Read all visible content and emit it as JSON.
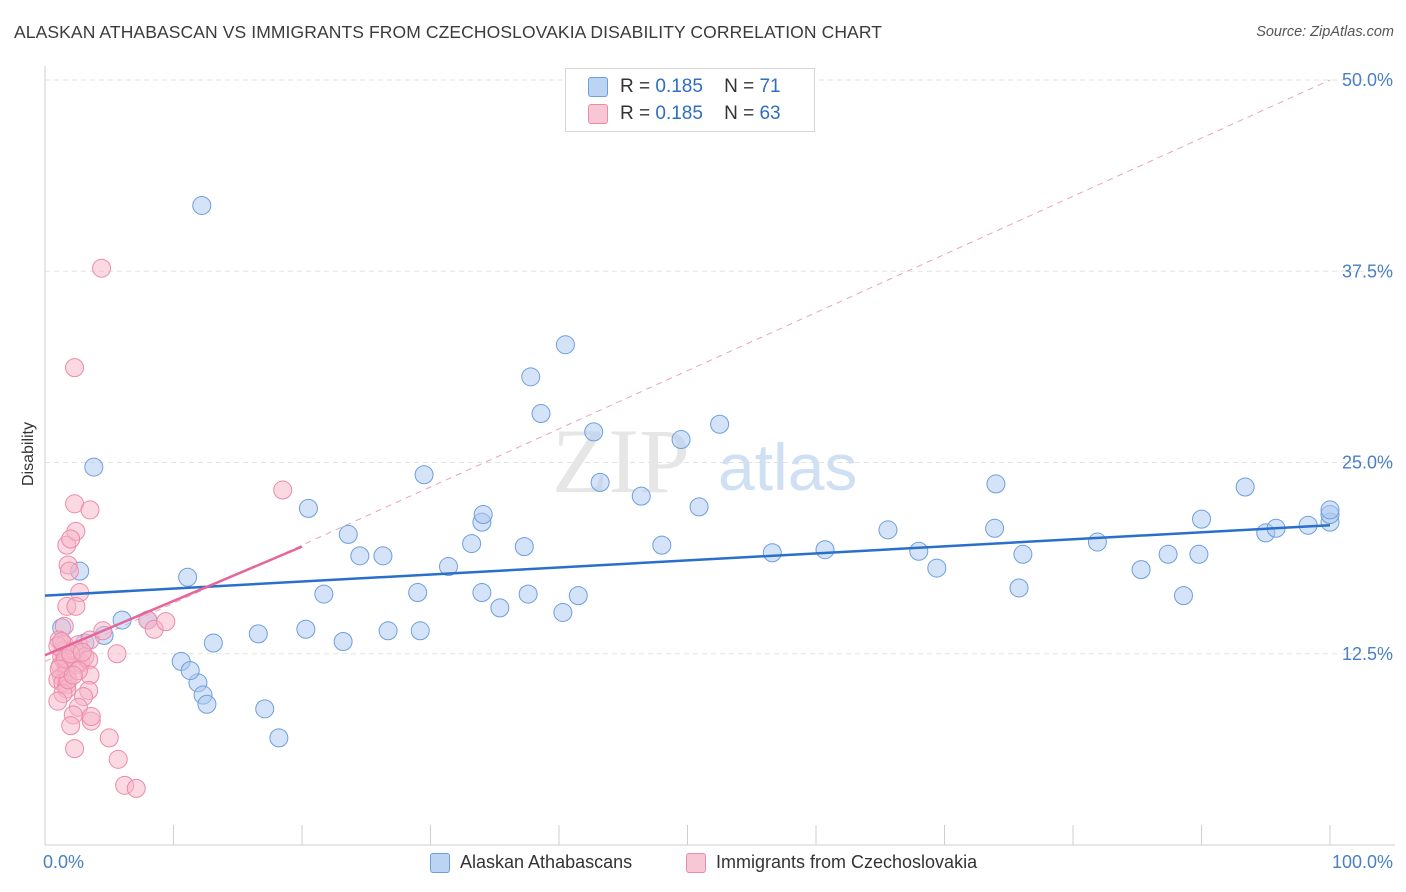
{
  "title": "ALASKAN ATHABASCAN VS IMMIGRANTS FROM CZECHOSLOVAKIA DISABILITY CORRELATION CHART",
  "source": "Source: ZipAtlas.com",
  "watermark": {
    "zip": "ZIP",
    "atlas": "atlas"
  },
  "legend_top": [
    {
      "r_label": "R =",
      "r_value": "0.185",
      "n_label": "N =",
      "n_value": "71"
    },
    {
      "r_label": "R =",
      "r_value": "0.185",
      "n_label": "N =",
      "n_value": "63"
    }
  ],
  "legend_bottom": [
    "Alaskan Athabascans",
    "Immigrants from Czechoslovakia"
  ],
  "colors": {
    "blue_fill": "#a9c8f0",
    "blue_stroke": "#6d9fdc",
    "blue_line": "#2a6fcb",
    "pink_fill": "#f6b3c7",
    "pink_stroke": "#ec8aa9",
    "pink_line": "#e4669a",
    "grid": "#e3e3e3",
    "tick_text": "#4a7fc4"
  },
  "chart_data": {
    "type": "scatter",
    "title": "ALASKAN ATHABASCAN VS IMMIGRANTS FROM CZECHOSLOVAKIA DISABILITY CORRELATION CHART",
    "xlabel": "",
    "ylabel": "Disability",
    "xlim": [
      0,
      100
    ],
    "ylim": [
      0,
      50
    ],
    "x_tick_labels": [
      "0.0%",
      "100.0%"
    ],
    "y_ticks": [
      12.5,
      25.0,
      37.5,
      50.0
    ],
    "y_tick_labels": [
      "12.5%",
      "25.0%",
      "37.5%",
      "50.0%"
    ],
    "grid": true,
    "legend_position": "top-center",
    "series": [
      {
        "name": "Alaskan Athabascans",
        "color": "#a9c8f0",
        "trend": {
          "x": [
            0,
            100
          ],
          "y": [
            16.3,
            20.9
          ]
        },
        "points": [
          [
            12.2,
            41.8
          ],
          [
            3.8,
            24.7
          ],
          [
            2.7,
            17.9
          ],
          [
            1.3,
            14.2
          ],
          [
            3.1,
            13.2
          ],
          [
            4.6,
            13.7
          ],
          [
            6.0,
            14.7
          ],
          [
            8.0,
            14.7
          ],
          [
            13.1,
            13.2
          ],
          [
            16.6,
            13.8
          ],
          [
            20.3,
            14.1
          ],
          [
            11.1,
            17.5
          ],
          [
            11.9,
            10.6
          ],
          [
            12.3,
            9.8
          ],
          [
            10.6,
            12.0
          ],
          [
            11.3,
            11.4
          ],
          [
            12.6,
            9.2
          ],
          [
            17.1,
            8.9
          ],
          [
            18.2,
            7.0
          ],
          [
            23.2,
            13.3
          ],
          [
            26.7,
            14.0
          ],
          [
            21.7,
            16.4
          ],
          [
            26.3,
            18.9
          ],
          [
            29.0,
            16.5
          ],
          [
            24.5,
            18.9
          ],
          [
            23.6,
            20.3
          ],
          [
            29.2,
            14.0
          ],
          [
            34.0,
            16.5
          ],
          [
            35.4,
            15.5
          ],
          [
            37.6,
            16.4
          ],
          [
            40.3,
            15.2
          ],
          [
            41.5,
            16.3
          ],
          [
            37.3,
            19.5
          ],
          [
            34.0,
            21.1
          ],
          [
            38.6,
            28.2
          ],
          [
            42.7,
            27.0
          ],
          [
            49.5,
            26.5
          ],
          [
            52.5,
            27.5
          ],
          [
            40.5,
            32.7
          ],
          [
            37.8,
            30.6
          ],
          [
            43.2,
            23.7
          ],
          [
            46.4,
            22.8
          ],
          [
            50.9,
            22.1
          ],
          [
            48.0,
            19.6
          ],
          [
            56.6,
            19.1
          ],
          [
            60.7,
            19.3
          ],
          [
            65.6,
            20.6
          ],
          [
            68.0,
            19.2
          ],
          [
            69.4,
            18.1
          ],
          [
            73.9,
            20.7
          ],
          [
            74.0,
            23.6
          ],
          [
            75.8,
            16.8
          ],
          [
            76.1,
            19.0
          ],
          [
            81.9,
            19.8
          ],
          [
            85.3,
            18.0
          ],
          [
            87.4,
            19.0
          ],
          [
            88.6,
            16.3
          ],
          [
            89.8,
            19.0
          ],
          [
            90.0,
            21.3
          ],
          [
            93.4,
            23.4
          ],
          [
            95.0,
            20.4
          ],
          [
            95.8,
            20.7
          ],
          [
            98.3,
            20.9
          ],
          [
            100.0,
            21.1
          ],
          [
            100.0,
            21.6
          ],
          [
            100.0,
            21.9
          ],
          [
            20.5,
            22.0
          ],
          [
            29.5,
            24.2
          ],
          [
            34.1,
            21.6
          ],
          [
            33.2,
            19.7
          ],
          [
            31.4,
            18.2
          ]
        ]
      },
      {
        "name": "Immigrants from Czechoslovakia",
        "color": "#f6b3c7",
        "trend": {
          "x": [
            0,
            20
          ],
          "y": [
            12.4,
            19.5
          ]
        },
        "points": [
          [
            4.4,
            37.7
          ],
          [
            2.3,
            31.2
          ],
          [
            1.7,
            19.6
          ],
          [
            1.8,
            18.3
          ],
          [
            2.4,
            20.5
          ],
          [
            2.3,
            22.3
          ],
          [
            3.5,
            21.9
          ],
          [
            2.0,
            20.0
          ],
          [
            1.9,
            17.9
          ],
          [
            2.7,
            16.5
          ],
          [
            1.7,
            15.6
          ],
          [
            2.4,
            15.6
          ],
          [
            1.5,
            14.3
          ],
          [
            1.5,
            13.1
          ],
          [
            1.4,
            12.7
          ],
          [
            1.3,
            12.3
          ],
          [
            1.5,
            12.0
          ],
          [
            1.2,
            11.7
          ],
          [
            1.7,
            11.6
          ],
          [
            1.7,
            11.3
          ],
          [
            1.3,
            11.0
          ],
          [
            1.0,
            10.8
          ],
          [
            1.4,
            10.6
          ],
          [
            1.7,
            10.5
          ],
          [
            1.7,
            10.2
          ],
          [
            1.4,
            9.9
          ],
          [
            1.0,
            9.4
          ],
          [
            1.1,
            13.4
          ],
          [
            1.0,
            13.0
          ],
          [
            1.3,
            13.3
          ],
          [
            2.3,
            12.7
          ],
          [
            2.6,
            13.1
          ],
          [
            2.5,
            11.8
          ],
          [
            2.8,
            11.9
          ],
          [
            3.1,
            12.3
          ],
          [
            3.5,
            13.4
          ],
          [
            3.4,
            12.1
          ],
          [
            3.5,
            11.1
          ],
          [
            3.4,
            10.1
          ],
          [
            3.0,
            9.7
          ],
          [
            2.6,
            9.0
          ],
          [
            2.2,
            8.5
          ],
          [
            2.0,
            7.8
          ],
          [
            2.3,
            6.3
          ],
          [
            3.6,
            8.1
          ],
          [
            4.5,
            14.0
          ],
          [
            5.6,
            12.5
          ],
          [
            5.0,
            7.0
          ],
          [
            5.7,
            5.6
          ],
          [
            6.2,
            3.9
          ],
          [
            7.1,
            3.7
          ],
          [
            8.0,
            14.7
          ],
          [
            8.5,
            14.1
          ],
          [
            9.4,
            14.6
          ],
          [
            18.5,
            23.2
          ],
          [
            3.6,
            8.4
          ],
          [
            1.6,
            12.2
          ],
          [
            2.0,
            12.5
          ],
          [
            2.9,
            12.6
          ],
          [
            1.8,
            10.8
          ],
          [
            2.6,
            11.4
          ],
          [
            1.1,
            11.5
          ],
          [
            2.2,
            11.1
          ]
        ]
      }
    ]
  }
}
